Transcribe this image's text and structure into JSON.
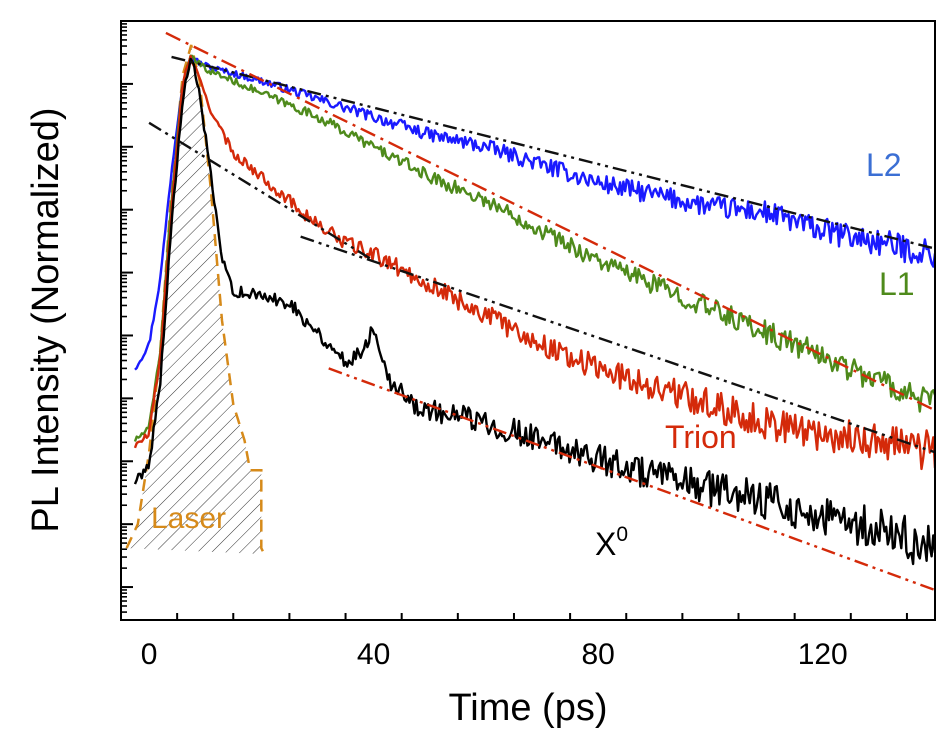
{
  "chart_data": {
    "type": "line",
    "title": "",
    "xlabel": "Time (ps)",
    "ylabel": "PL Intensity (Normalized)",
    "xlim": [
      -5,
      140
    ],
    "ylim": [
      0,
      1
    ],
    "xticks": [
      0,
      40,
      80,
      120
    ],
    "xtick_labels": [
      "0",
      "40",
      "80",
      "120"
    ],
    "y_scale": "log (normalized, no tick labels)",
    "grid": false,
    "legend": "inline labels",
    "series": [
      {
        "name": "L2",
        "label": "L2",
        "color": "#1a1aff",
        "label_color": "#3b6fd4",
        "x": [
          -2.5,
          0,
          2,
          4,
          6,
          7.5,
          9,
          12,
          20,
          30,
          40,
          50,
          60,
          70,
          80,
          90,
          100,
          110,
          120,
          130,
          140
        ],
        "y": [
          0.42,
          0.46,
          0.57,
          0.75,
          0.9,
          0.94,
          0.93,
          0.92,
          0.9,
          0.87,
          0.84,
          0.81,
          0.79,
          0.76,
          0.73,
          0.71,
          0.69,
          0.68,
          0.65,
          0.63,
          0.61
        ]
      },
      {
        "name": "L1",
        "label": "L1",
        "color": "#4e8a1b",
        "label_color": "#4e8a1b",
        "x": [
          -2.5,
          0,
          2,
          4,
          6,
          7.5,
          10,
          20,
          30,
          40,
          50,
          60,
          70,
          80,
          90,
          100,
          110,
          120,
          130,
          140
        ],
        "y": [
          0.3,
          0.32,
          0.45,
          0.7,
          0.9,
          0.94,
          0.92,
          0.88,
          0.84,
          0.79,
          0.74,
          0.7,
          0.65,
          0.6,
          0.56,
          0.52,
          0.48,
          0.44,
          0.4,
          0.36
        ]
      },
      {
        "name": "Trion",
        "label": "Trion",
        "color": "#d42a0a",
        "label_color": "#d42a0a",
        "x": [
          -2.5,
          0,
          2,
          4,
          6,
          7.5,
          9,
          12,
          15,
          20,
          25,
          30,
          35,
          40,
          50,
          60,
          70,
          80,
          90,
          100,
          110,
          120,
          130,
          140
        ],
        "y": [
          0.29,
          0.31,
          0.44,
          0.68,
          0.9,
          0.94,
          0.9,
          0.83,
          0.78,
          0.74,
          0.7,
          0.66,
          0.63,
          0.61,
          0.56,
          0.51,
          0.46,
          0.42,
          0.39,
          0.36,
          0.33,
          0.31,
          0.3,
          0.28
        ]
      },
      {
        "name": "X0",
        "label": "X",
        "label_superscript": "0",
        "color": "#000000",
        "label_color": "#000000",
        "x": [
          -2.5,
          0,
          2,
          4,
          6,
          7.5,
          9,
          11,
          13,
          15,
          20,
          25,
          30,
          35,
          38,
          40,
          43,
          47,
          50,
          60,
          70,
          80,
          90,
          100,
          110,
          120,
          130,
          140
        ],
        "y": [
          0.23,
          0.26,
          0.4,
          0.66,
          0.87,
          0.94,
          0.88,
          0.74,
          0.6,
          0.55,
          0.54,
          0.53,
          0.48,
          0.43,
          0.45,
          0.49,
          0.4,
          0.36,
          0.35,
          0.33,
          0.3,
          0.27,
          0.24,
          0.22,
          0.2,
          0.17,
          0.15,
          0.12
        ]
      },
      {
        "name": "Laser",
        "label": "Laser",
        "color": "#d68a1a",
        "label_color": "#d68a1a",
        "x": [
          -4,
          -2,
          0,
          2,
          4,
          6,
          7.5,
          9,
          11,
          13,
          15,
          17,
          18,
          20,
          20,
          20.5
        ],
        "y": [
          0.12,
          0.16,
          0.28,
          0.45,
          0.72,
          0.91,
          0.96,
          0.9,
          0.72,
          0.5,
          0.36,
          0.3,
          0.25,
          0.25,
          0.12,
          0.11
        ]
      }
    ],
    "fits": [
      {
        "name": "L2 fit",
        "color": "#111111",
        "style": "dash-dot-dot",
        "x": [
          4,
          140
        ],
        "y": [
          0.94,
          0.62
        ]
      },
      {
        "name": "L1 fit",
        "color": "#d42a0a",
        "style": "dash-dot",
        "x": [
          3,
          140
        ],
        "y": [
          0.98,
          0.35
        ]
      },
      {
        "name": "Trion fit early",
        "color": "#111111",
        "style": "dash-dot-dot",
        "x": [
          0,
          40
        ],
        "y": [
          0.83,
          0.6
        ]
      },
      {
        "name": "Trion fit late",
        "color": "#111111",
        "style": "dash-dot-dot",
        "x": [
          27,
          140
        ],
        "y": [
          0.64,
          0.28
        ]
      },
      {
        "name": "X0 fit",
        "color": "#d42a0a",
        "style": "dash-dot-dot",
        "x": [
          32,
          140
        ],
        "y": [
          0.42,
          0.05
        ]
      }
    ]
  }
}
